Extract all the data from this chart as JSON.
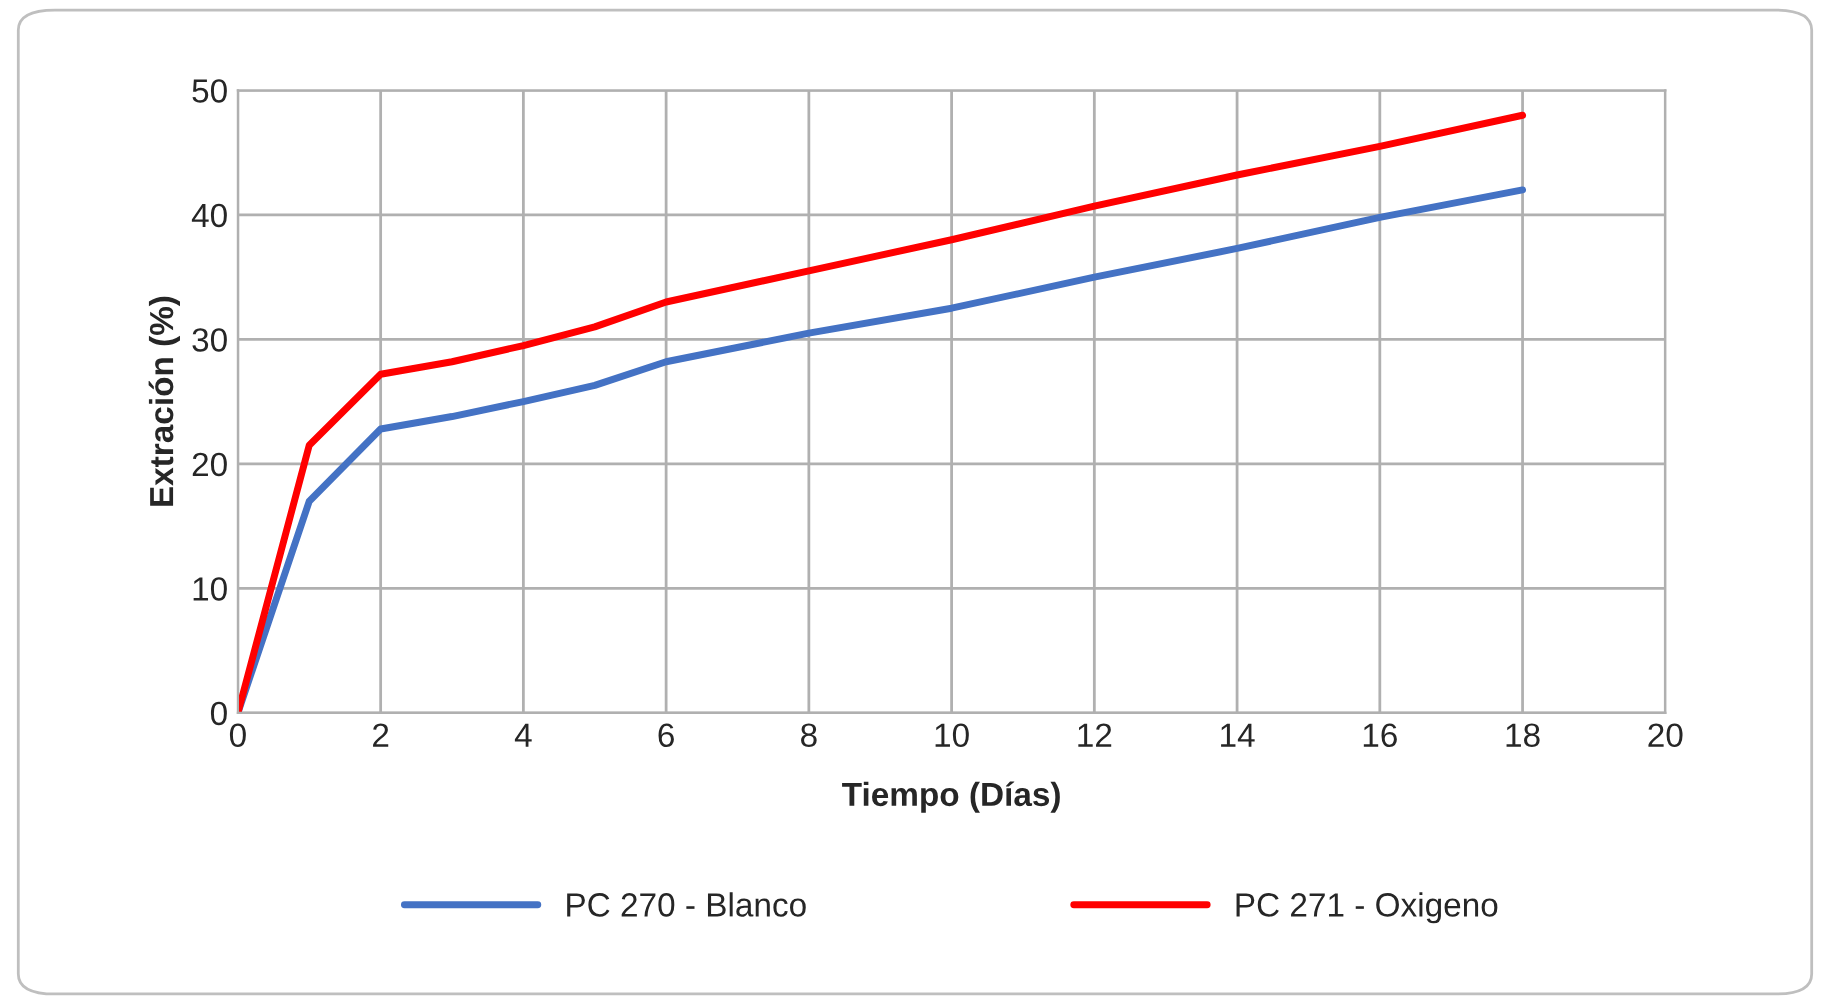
{
  "chart_data": {
    "type": "line",
    "xlabel": "Tiempo (Días)",
    "ylabel": "Extración (%)",
    "xlim": [
      0,
      20
    ],
    "xticks": [
      0,
      2,
      4,
      6,
      8,
      10,
      12,
      14,
      16,
      18,
      20
    ],
    "ylim": [
      0,
      50
    ],
    "yticks": [
      0,
      10,
      20,
      30,
      40,
      50
    ],
    "grid": true,
    "legend": "bottom",
    "marker": "none",
    "line_style": "solid",
    "x": [
      0,
      1,
      2,
      3,
      4,
      5,
      6,
      8,
      10,
      12,
      14,
      16,
      18
    ],
    "series": [
      {
        "name": "PC 270 - Blanco",
        "color": "#4472c4",
        "values": [
          0,
          17,
          22.8,
          23.8,
          25,
          26.3,
          28.2,
          30.5,
          32.5,
          35,
          37.3,
          39.8,
          42
        ]
      },
      {
        "name": "PC 271 - Oxigeno",
        "color": "#ff0000",
        "values": [
          0,
          21.5,
          27.2,
          28.2,
          29.5,
          31,
          33,
          35.5,
          38,
          40.7,
          43.2,
          45.5,
          48
        ]
      }
    ]
  }
}
